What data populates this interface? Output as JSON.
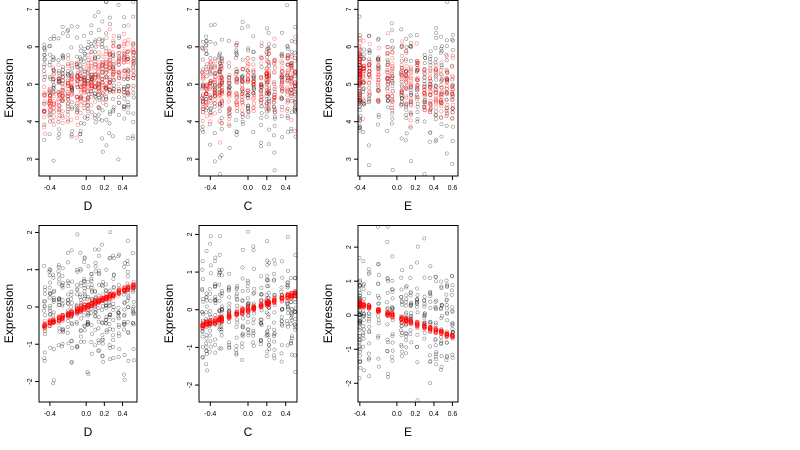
{
  "chart_data": [
    {
      "type": "scatter",
      "xlabel": "D",
      "ylabel": "Expression",
      "xlim": [
        -0.52,
        0.56
      ],
      "ylim": [
        2.55,
        7.25
      ],
      "xticks": [
        "-0.4",
        "0.0",
        "0.2",
        "0.4"
      ],
      "xtick_values": [
        -0.4,
        0.0,
        0.2,
        0.4
      ],
      "yticks": [
        "3",
        "4",
        "5",
        "6",
        "7"
      ],
      "ytick_values": [
        3,
        4,
        5,
        6,
        7
      ],
      "observed_color": "#000000",
      "fitted_color": "#ff0000",
      "x_levels": [
        -0.46,
        -0.4,
        -0.36,
        -0.3,
        -0.26,
        -0.2,
        -0.16,
        -0.1,
        -0.06,
        -0.02,
        0.02,
        0.06,
        0.1,
        0.14,
        0.18,
        0.22,
        0.26,
        0.3,
        0.36,
        0.42,
        0.46,
        0.52
      ],
      "fit": {
        "kind": "linear",
        "intercept": 5.05,
        "slope": 1.2,
        "spread": 0.4
      },
      "observed_center": 5.2,
      "observed_sd": 0.75,
      "points_per_level": 17
    },
    {
      "type": "scatter",
      "xlabel": "C",
      "ylabel": "Expression",
      "xlim": [
        -0.52,
        0.52
      ],
      "ylim": [
        2.55,
        7.25
      ],
      "xticks": [
        "-0.4",
        "0.0",
        "0.2",
        "0.4"
      ],
      "xtick_values": [
        -0.4,
        0.0,
        0.2,
        0.4
      ],
      "yticks": [
        "3",
        "4",
        "5",
        "6",
        "7"
      ],
      "ytick_values": [
        3,
        4,
        5,
        6,
        7
      ],
      "observed_color": "#000000",
      "fitted_color": "#ff0000",
      "x_levels": [
        -0.48,
        -0.44,
        -0.4,
        -0.35,
        -0.3,
        -0.28,
        -0.2,
        -0.12,
        -0.06,
        0.0,
        0.06,
        0.14,
        0.2,
        0.22,
        0.28,
        0.36,
        0.42,
        0.46,
        0.5
      ],
      "fit": {
        "kind": "linear",
        "intercept": 5.0,
        "slope": 0.35,
        "spread": 0.45
      },
      "observed_center": 5.0,
      "observed_sd": 0.75,
      "points_per_level": 18
    },
    {
      "type": "scatter",
      "xlabel": "E",
      "ylabel": "Expression",
      "xlim": [
        -0.42,
        0.66
      ],
      "ylim": [
        2.55,
        7.25
      ],
      "xticks": [
        "-0.4",
        "0.0",
        "0.2",
        "0.4",
        "0.6"
      ],
      "xtick_values": [
        -0.4,
        0.0,
        0.2,
        0.4,
        0.6
      ],
      "yticks": [
        "3",
        "4",
        "5",
        "6",
        "7"
      ],
      "ytick_values": [
        3,
        4,
        5,
        6,
        7
      ],
      "observed_color": "#000000",
      "fitted_color": "#ff0000",
      "x_levels": [
        -0.4,
        -0.4,
        -0.4,
        -0.36,
        -0.3,
        -0.2,
        -0.1,
        -0.05,
        0.05,
        0.1,
        0.15,
        0.22,
        0.3,
        0.36,
        0.42,
        0.48,
        0.54,
        0.6
      ],
      "fit": {
        "kind": "linear",
        "intercept": 5.15,
        "slope": -0.6,
        "spread": 0.45
      },
      "observed_center": 5.0,
      "observed_sd": 0.75,
      "points_per_level": 18
    },
    {
      "type": "scatter",
      "xlabel": "D",
      "ylabel": "Expression",
      "xlim": [
        -0.52,
        0.56
      ],
      "ylim": [
        -2.55,
        2.2
      ],
      "xticks": [
        "-0.4",
        "0.0",
        "0.2",
        "0.4"
      ],
      "xtick_values": [
        -0.4,
        0.0,
        0.2,
        0.4
      ],
      "yticks": [
        "-2",
        "-1",
        "0",
        "1",
        "2"
      ],
      "ytick_values": [
        -2,
        -1,
        0,
        1,
        2
      ],
      "observed_color": "#000000",
      "fitted_color": "#ff0000",
      "x_levels": [
        -0.46,
        -0.4,
        -0.36,
        -0.3,
        -0.26,
        -0.2,
        -0.16,
        -0.1,
        -0.06,
        -0.02,
        0.02,
        0.06,
        0.1,
        0.14,
        0.18,
        0.22,
        0.26,
        0.3,
        0.36,
        0.42,
        0.46,
        0.52
      ],
      "fit": {
        "kind": "linear",
        "intercept": 0.0,
        "slope": 1.1,
        "spread": 0.05
      },
      "observed_center": 0.0,
      "observed_sd": 0.75,
      "points_per_level": 17
    },
    {
      "type": "scatter",
      "xlabel": "C",
      "ylabel": "Expression",
      "xlim": [
        -0.52,
        0.52
      ],
      "ylim": [
        -2.45,
        2.25
      ],
      "xticks": [
        "-0.4",
        "0.0",
        "0.2",
        "0.4"
      ],
      "xtick_values": [
        -0.4,
        0.0,
        0.2,
        0.4
      ],
      "yticks": [
        "-2",
        "-1",
        "0",
        "1",
        "2"
      ],
      "ytick_values": [
        -2,
        -1,
        0,
        1,
        2
      ],
      "observed_color": "#000000",
      "fitted_color": "#ff0000",
      "x_levels": [
        -0.48,
        -0.44,
        -0.4,
        -0.35,
        -0.3,
        -0.28,
        -0.2,
        -0.12,
        -0.06,
        0.0,
        0.06,
        0.14,
        0.2,
        0.22,
        0.28,
        0.36,
        0.42,
        0.46,
        0.5
      ],
      "fit": {
        "kind": "linear",
        "intercept": 0.0,
        "slope": 0.85,
        "spread": 0.05
      },
      "observed_center": 0.0,
      "observed_sd": 0.75,
      "points_per_level": 18
    },
    {
      "type": "scatter",
      "xlabel": "E",
      "ylabel": "Expression",
      "xlim": [
        -0.42,
        0.66
      ],
      "ylim": [
        -2.55,
        2.65
      ],
      "xticks": [
        "-0.4",
        "0.0",
        "0.2",
        "0.4",
        "0.6"
      ],
      "xtick_values": [
        -0.4,
        0.0,
        0.2,
        0.4,
        0.6
      ],
      "yticks": [
        "-2",
        "-1",
        "0",
        "1",
        "2"
      ],
      "ytick_values": [
        -2,
        -1,
        0,
        1,
        2
      ],
      "observed_color": "#000000",
      "fitted_color": "#ff0000",
      "x_levels": [
        -0.4,
        -0.4,
        -0.4,
        -0.36,
        -0.3,
        -0.2,
        -0.1,
        -0.05,
        0.05,
        0.1,
        0.15,
        0.22,
        0.3,
        0.36,
        0.42,
        0.48,
        0.54,
        0.6
      ],
      "fit": {
        "kind": "linear",
        "intercept": -0.05,
        "slope": -0.95,
        "spread": 0.05
      },
      "observed_center": 0.0,
      "observed_sd": 0.8,
      "points_per_level": 18
    }
  ]
}
